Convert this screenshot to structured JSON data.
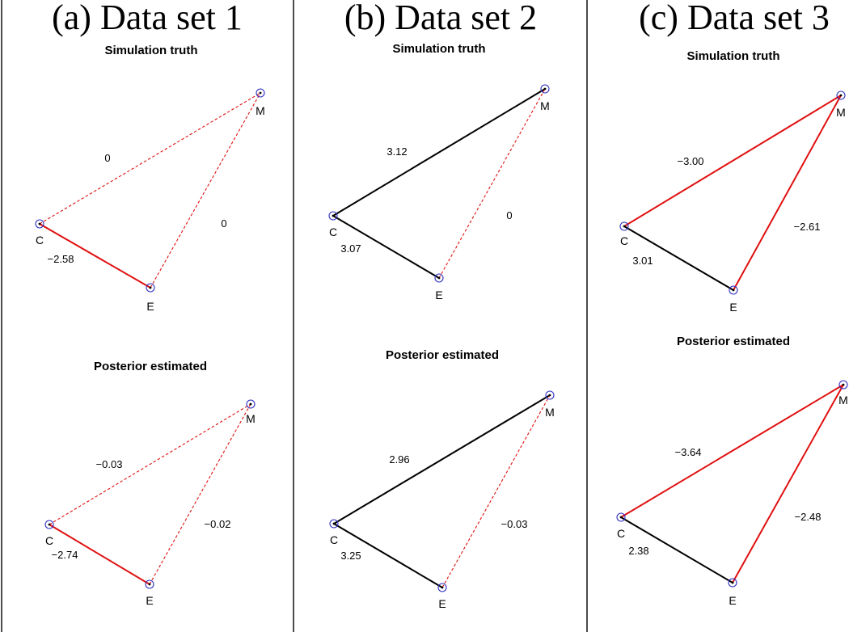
{
  "colors": {
    "positive": "#000000",
    "negative": "#e01010",
    "node_ring": "#3030c0"
  },
  "panels": [
    {
      "title": "(a) Data set 1",
      "diagrams": [
        {
          "subtitle": "Simulation truth",
          "edges": [
            {
              "from": "C",
              "to": "M",
              "value": "0",
              "sign": "negative",
              "style": "dashed"
            },
            {
              "from": "E",
              "to": "M",
              "value": "0",
              "sign": "negative",
              "style": "dashed"
            },
            {
              "from": "C",
              "to": "E",
              "value": "−2.58",
              "sign": "negative",
              "style": "solid"
            }
          ]
        },
        {
          "subtitle": "Posterior estimated",
          "edges": [
            {
              "from": "C",
              "to": "M",
              "value": "−0.03",
              "sign": "negative",
              "style": "dashed"
            },
            {
              "from": "E",
              "to": "M",
              "value": "−0.02",
              "sign": "negative",
              "style": "dashed"
            },
            {
              "from": "C",
              "to": "E",
              "value": "−2.74",
              "sign": "negative",
              "style": "solid"
            }
          ]
        }
      ]
    },
    {
      "title": "(b) Data set 2",
      "diagrams": [
        {
          "subtitle": "Simulation truth",
          "edges": [
            {
              "from": "C",
              "to": "M",
              "value": "3.12",
              "sign": "positive",
              "style": "solid"
            },
            {
              "from": "E",
              "to": "M",
              "value": "0",
              "sign": "negative",
              "style": "dashed"
            },
            {
              "from": "C",
              "to": "E",
              "value": "3.07",
              "sign": "positive",
              "style": "solid"
            }
          ]
        },
        {
          "subtitle": "Posterior estimated",
          "edges": [
            {
              "from": "C",
              "to": "M",
              "value": "2.96",
              "sign": "positive",
              "style": "solid"
            },
            {
              "from": "E",
              "to": "M",
              "value": "−0.03",
              "sign": "negative",
              "style": "dashed"
            },
            {
              "from": "C",
              "to": "E",
              "value": "3.25",
              "sign": "positive",
              "style": "solid"
            }
          ]
        }
      ]
    },
    {
      "title": "(c) Data set 3",
      "diagrams": [
        {
          "subtitle": "Simulation truth",
          "edges": [
            {
              "from": "C",
              "to": "M",
              "value": "−3.00",
              "sign": "negative",
              "style": "solid"
            },
            {
              "from": "E",
              "to": "M",
              "value": "−2.61",
              "sign": "negative",
              "style": "solid"
            },
            {
              "from": "C",
              "to": "E",
              "value": "3.01",
              "sign": "positive",
              "style": "solid"
            }
          ]
        },
        {
          "subtitle": "Posterior estimated",
          "edges": [
            {
              "from": "C",
              "to": "M",
              "value": "−3.64",
              "sign": "negative",
              "style": "solid"
            },
            {
              "from": "E",
              "to": "M",
              "value": "−2.48",
              "sign": "negative",
              "style": "solid"
            },
            {
              "from": "C",
              "to": "E",
              "value": "2.38",
              "sign": "positive",
              "style": "solid"
            }
          ]
        }
      ]
    }
  ],
  "node_labels": {
    "C": "C",
    "E": "E",
    "M": "M"
  }
}
